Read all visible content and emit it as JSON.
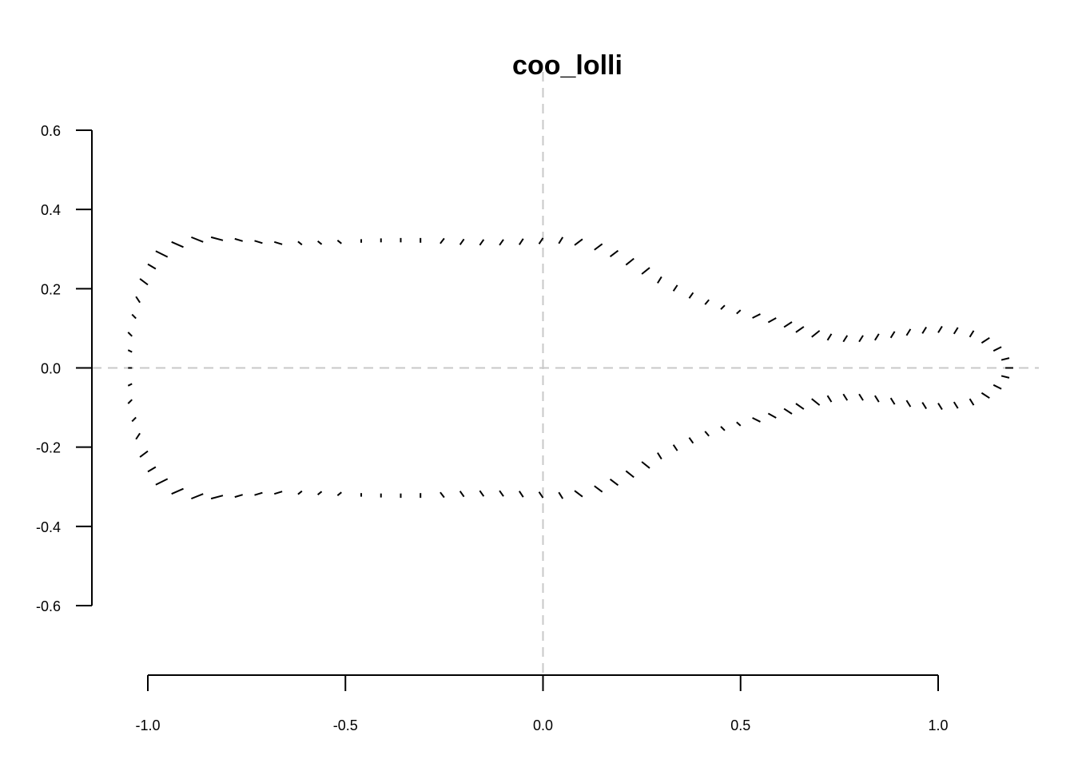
{
  "chart_data": {
    "type": "scatter",
    "title": "coo_lolli",
    "xlabel": "",
    "ylabel": "",
    "xlim": [
      -1.0,
      1.0
    ],
    "ylim": [
      -0.6,
      0.6
    ],
    "xticks": [
      -1.0,
      -0.5,
      0.0,
      0.5,
      1.0
    ],
    "xtick_labels": [
      "-1.0",
      "-0.5",
      "0.0",
      "0.5",
      "1.0"
    ],
    "yticks": [
      -0.6,
      -0.4,
      -0.2,
      0.0,
      0.2,
      0.4,
      0.6
    ],
    "ytick_labels": [
      "-0.6",
      "-0.4",
      "-0.2",
      "0.0",
      "0.2",
      "0.4",
      "0.6"
    ],
    "reference_lines": {
      "horizontal_at": 0.0,
      "vertical_at": 0.0,
      "style": "dashed",
      "color": "#c8c8c8"
    },
    "grid": false,
    "segment_color": "#000000",
    "segments_upper": [
      {
        "x0": -1.04,
        "y0": 0.0,
        "x1": -1.05,
        "y1": 0.0
      },
      {
        "x0": -1.04,
        "y0": 0.04,
        "x1": -1.05,
        "y1": 0.045
      },
      {
        "x0": -1.04,
        "y0": 0.08,
        "x1": -1.05,
        "y1": 0.09
      },
      {
        "x0": -1.03,
        "y0": 0.125,
        "x1": -1.04,
        "y1": 0.135
      },
      {
        "x0": -1.02,
        "y0": 0.165,
        "x1": -1.03,
        "y1": 0.18
      },
      {
        "x0": -1.0,
        "y0": 0.21,
        "x1": -1.02,
        "y1": 0.225
      },
      {
        "x0": -0.98,
        "y0": 0.25,
        "x1": -1.0,
        "y1": 0.262
      },
      {
        "x0": -0.95,
        "y0": 0.28,
        "x1": -0.98,
        "y1": 0.295
      },
      {
        "x0": -0.91,
        "y0": 0.305,
        "x1": -0.94,
        "y1": 0.318
      },
      {
        "x0": -0.86,
        "y0": 0.318,
        "x1": -0.89,
        "y1": 0.33
      },
      {
        "x0": -0.81,
        "y0": 0.322,
        "x1": -0.84,
        "y1": 0.33
      },
      {
        "x0": -0.76,
        "y0": 0.32,
        "x1": -0.78,
        "y1": 0.326
      },
      {
        "x0": -0.71,
        "y0": 0.315,
        "x1": -0.73,
        "y1": 0.321
      },
      {
        "x0": -0.66,
        "y0": 0.312,
        "x1": -0.68,
        "y1": 0.318
      },
      {
        "x0": -0.61,
        "y0": 0.311,
        "x1": -0.62,
        "y1": 0.319
      },
      {
        "x0": -0.56,
        "y0": 0.312,
        "x1": -0.57,
        "y1": 0.32
      },
      {
        "x0": -0.51,
        "y0": 0.314,
        "x1": -0.52,
        "y1": 0.322
      },
      {
        "x0": -0.46,
        "y0": 0.316,
        "x1": -0.46,
        "y1": 0.325
      },
      {
        "x0": -0.41,
        "y0": 0.317,
        "x1": -0.41,
        "y1": 0.327
      },
      {
        "x0": -0.36,
        "y0": 0.317,
        "x1": -0.36,
        "y1": 0.328
      },
      {
        "x0": -0.31,
        "y0": 0.316,
        "x1": -0.31,
        "y1": 0.328
      },
      {
        "x0": -0.26,
        "y0": 0.314,
        "x1": -0.25,
        "y1": 0.327
      },
      {
        "x0": -0.21,
        "y0": 0.311,
        "x1": -0.2,
        "y1": 0.325
      },
      {
        "x0": -0.16,
        "y0": 0.31,
        "x1": -0.15,
        "y1": 0.324
      },
      {
        "x0": -0.11,
        "y0": 0.31,
        "x1": -0.1,
        "y1": 0.324
      },
      {
        "x0": -0.06,
        "y0": 0.311,
        "x1": -0.05,
        "y1": 0.326
      },
      {
        "x0": -0.01,
        "y0": 0.313,
        "x1": 0.0,
        "y1": 0.328
      },
      {
        "x0": 0.04,
        "y0": 0.314,
        "x1": 0.05,
        "y1": 0.33
      },
      {
        "x0": 0.08,
        "y0": 0.31,
        "x1": 0.1,
        "y1": 0.325
      },
      {
        "x0": 0.13,
        "y0": 0.298,
        "x1": 0.15,
        "y1": 0.313
      },
      {
        "x0": 0.17,
        "y0": 0.281,
        "x1": 0.19,
        "y1": 0.296
      },
      {
        "x0": 0.21,
        "y0": 0.26,
        "x1": 0.23,
        "y1": 0.276
      },
      {
        "x0": 0.25,
        "y0": 0.237,
        "x1": 0.27,
        "y1": 0.253
      },
      {
        "x0": 0.29,
        "y0": 0.214,
        "x1": 0.3,
        "y1": 0.23
      },
      {
        "x0": 0.33,
        "y0": 0.194,
        "x1": 0.34,
        "y1": 0.209
      },
      {
        "x0": 0.37,
        "y0": 0.176,
        "x1": 0.38,
        "y1": 0.19
      },
      {
        "x0": 0.41,
        "y0": 0.16,
        "x1": 0.42,
        "y1": 0.172
      },
      {
        "x0": 0.45,
        "y0": 0.148,
        "x1": 0.46,
        "y1": 0.158
      },
      {
        "x0": 0.49,
        "y0": 0.137,
        "x1": 0.5,
        "y1": 0.146
      },
      {
        "x0": 0.53,
        "y0": 0.126,
        "x1": 0.55,
        "y1": 0.136
      },
      {
        "x0": 0.57,
        "y0": 0.115,
        "x1": 0.59,
        "y1": 0.126
      },
      {
        "x0": 0.61,
        "y0": 0.103,
        "x1": 0.63,
        "y1": 0.116
      },
      {
        "x0": 0.64,
        "y0": 0.09,
        "x1": 0.66,
        "y1": 0.104
      },
      {
        "x0": 0.68,
        "y0": 0.078,
        "x1": 0.7,
        "y1": 0.094
      },
      {
        "x0": 0.72,
        "y0": 0.07,
        "x1": 0.73,
        "y1": 0.086
      },
      {
        "x0": 0.76,
        "y0": 0.066,
        "x1": 0.77,
        "y1": 0.082
      },
      {
        "x0": 0.8,
        "y0": 0.066,
        "x1": 0.81,
        "y1": 0.082
      },
      {
        "x0": 0.84,
        "y0": 0.07,
        "x1": 0.85,
        "y1": 0.086
      },
      {
        "x0": 0.88,
        "y0": 0.076,
        "x1": 0.89,
        "y1": 0.092
      },
      {
        "x0": 0.92,
        "y0": 0.082,
        "x1": 0.93,
        "y1": 0.098
      },
      {
        "x0": 0.96,
        "y0": 0.087,
        "x1": 0.97,
        "y1": 0.103
      },
      {
        "x0": 1.0,
        "y0": 0.089,
        "x1": 1.01,
        "y1": 0.105
      },
      {
        "x0": 1.04,
        "y0": 0.086,
        "x1": 1.05,
        "y1": 0.102
      },
      {
        "x0": 1.08,
        "y0": 0.078,
        "x1": 1.09,
        "y1": 0.094
      },
      {
        "x0": 1.11,
        "y0": 0.063,
        "x1": 1.13,
        "y1": 0.076
      },
      {
        "x0": 1.14,
        "y0": 0.043,
        "x1": 1.16,
        "y1": 0.053
      },
      {
        "x0": 1.16,
        "y0": 0.02,
        "x1": 1.18,
        "y1": 0.025
      },
      {
        "x0": 1.17,
        "y0": 0.0,
        "x1": 1.19,
        "y1": 0.0
      }
    ],
    "mirror_lower": true
  }
}
